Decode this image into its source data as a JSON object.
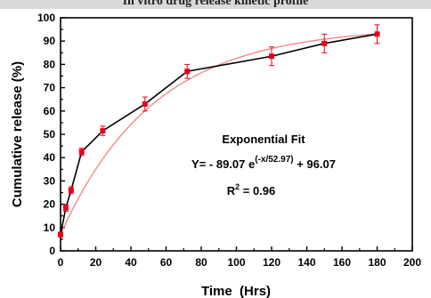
{
  "chart_data": {
    "type": "line",
    "title": "In vitro drug release kinetic profile",
    "xlabel": "Time  (Hrs)",
    "ylabel": "Cumulative release (%)",
    "xlim": [
      0,
      200
    ],
    "ylim": [
      0,
      100
    ],
    "x_ticks": [
      0,
      20,
      40,
      60,
      80,
      100,
      120,
      140,
      160,
      180,
      200
    ],
    "y_ticks": [
      0,
      10,
      20,
      30,
      40,
      50,
      60,
      70,
      80,
      90,
      100
    ],
    "grid": false,
    "series": [
      {
        "x": [
          0,
          3,
          6,
          12,
          24,
          48,
          72,
          120,
          150,
          180
        ],
        "values": [
          7,
          18.5,
          26,
          42.5,
          51.5,
          63,
          77,
          83.5,
          89,
          93
        ],
        "error": [
          1,
          1.5,
          1.5,
          1.5,
          2,
          3,
          3,
          4,
          4,
          4
        ],
        "color": "#e8001c",
        "line_color": "#000000"
      }
    ],
    "fit": {
      "equation_a": -89.07,
      "equation_tau": 52.97,
      "equation_c": 96.07,
      "x_start": 0,
      "x_end": 180,
      "color": "#f08a8a"
    },
    "annotations": {
      "fit_title": "Exponential Fit",
      "equation_prefix": "Y= - 89.07 e",
      "equation_exponent": "(-x/52.97)",
      "equation_suffix": " + 96.07",
      "r2_prefix": "R",
      "r2_sup": "2",
      "r2_suffix": " = 0.96"
    }
  }
}
